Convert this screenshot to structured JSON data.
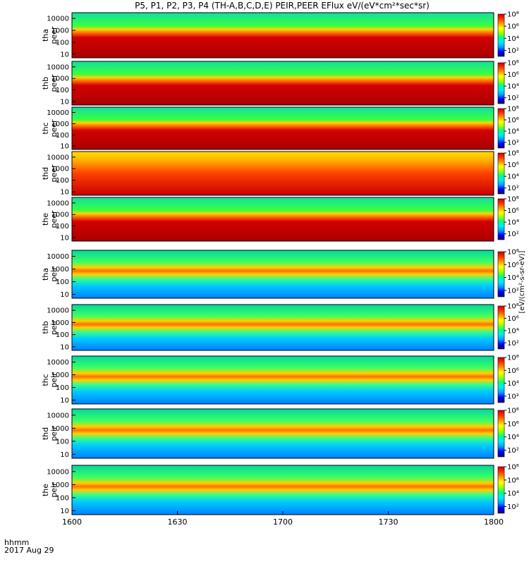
{
  "title": "P5, P1, P2, P3, P4 (TH-A,B,C,D,E) PEIR,PEER EFlux eV/(eV*cm²*sec*sr)",
  "x_axis": {
    "time_label": "hhmm",
    "date_label": "2017 Aug 29",
    "tick_labels": [
      "1600",
      "1630",
      "1700",
      "1730",
      "1800"
    ]
  },
  "colorbar": {
    "tick_labels": [
      "10²",
      "10⁴",
      "10⁶",
      "10⁸"
    ],
    "unit_label": "[eV/(cm²-s-sr-eV)]"
  },
  "chart_data": {
    "type": "heatmap",
    "x_range": [
      "16:00",
      "18:00"
    ],
    "y_scale": "log",
    "ylim": [
      5,
      30000
    ],
    "y_tick_labels": [
      "10",
      "100",
      "1000",
      "10000"
    ],
    "color_range": [
      10,
      100000000
    ],
    "color_scale": "log",
    "colormap": [
      "#1c0070",
      "#0000ff",
      "#00a0ff",
      "#00e8ff",
      "#00ff80",
      "#a0ff00",
      "#ffff00",
      "#ff9900",
      "#ff3300",
      "#cc0000"
    ],
    "panels": [
      {
        "probe": "tha",
        "species": "peer",
        "label": "tha\npeer"
      },
      {
        "probe": "thb",
        "species": "peer",
        "label": "thb\npeer"
      },
      {
        "probe": "thc",
        "species": "peer",
        "label": "thc\npeer"
      },
      {
        "probe": "thd",
        "species": "peer",
        "label": "thd\npeer"
      },
      {
        "probe": "the",
        "species": "peer",
        "label": "the\npeer"
      },
      {
        "probe": "tha",
        "species": "peir",
        "label": "tha\npeir"
      },
      {
        "probe": "thb",
        "species": "peir",
        "label": "thb\npeir"
      },
      {
        "probe": "thc",
        "species": "peir",
        "label": "thc\npeir"
      },
      {
        "probe": "thd",
        "species": "peir",
        "label": "thd\npeir"
      },
      {
        "probe": "the",
        "species": "peir",
        "label": "the\npeir"
      }
    ]
  }
}
